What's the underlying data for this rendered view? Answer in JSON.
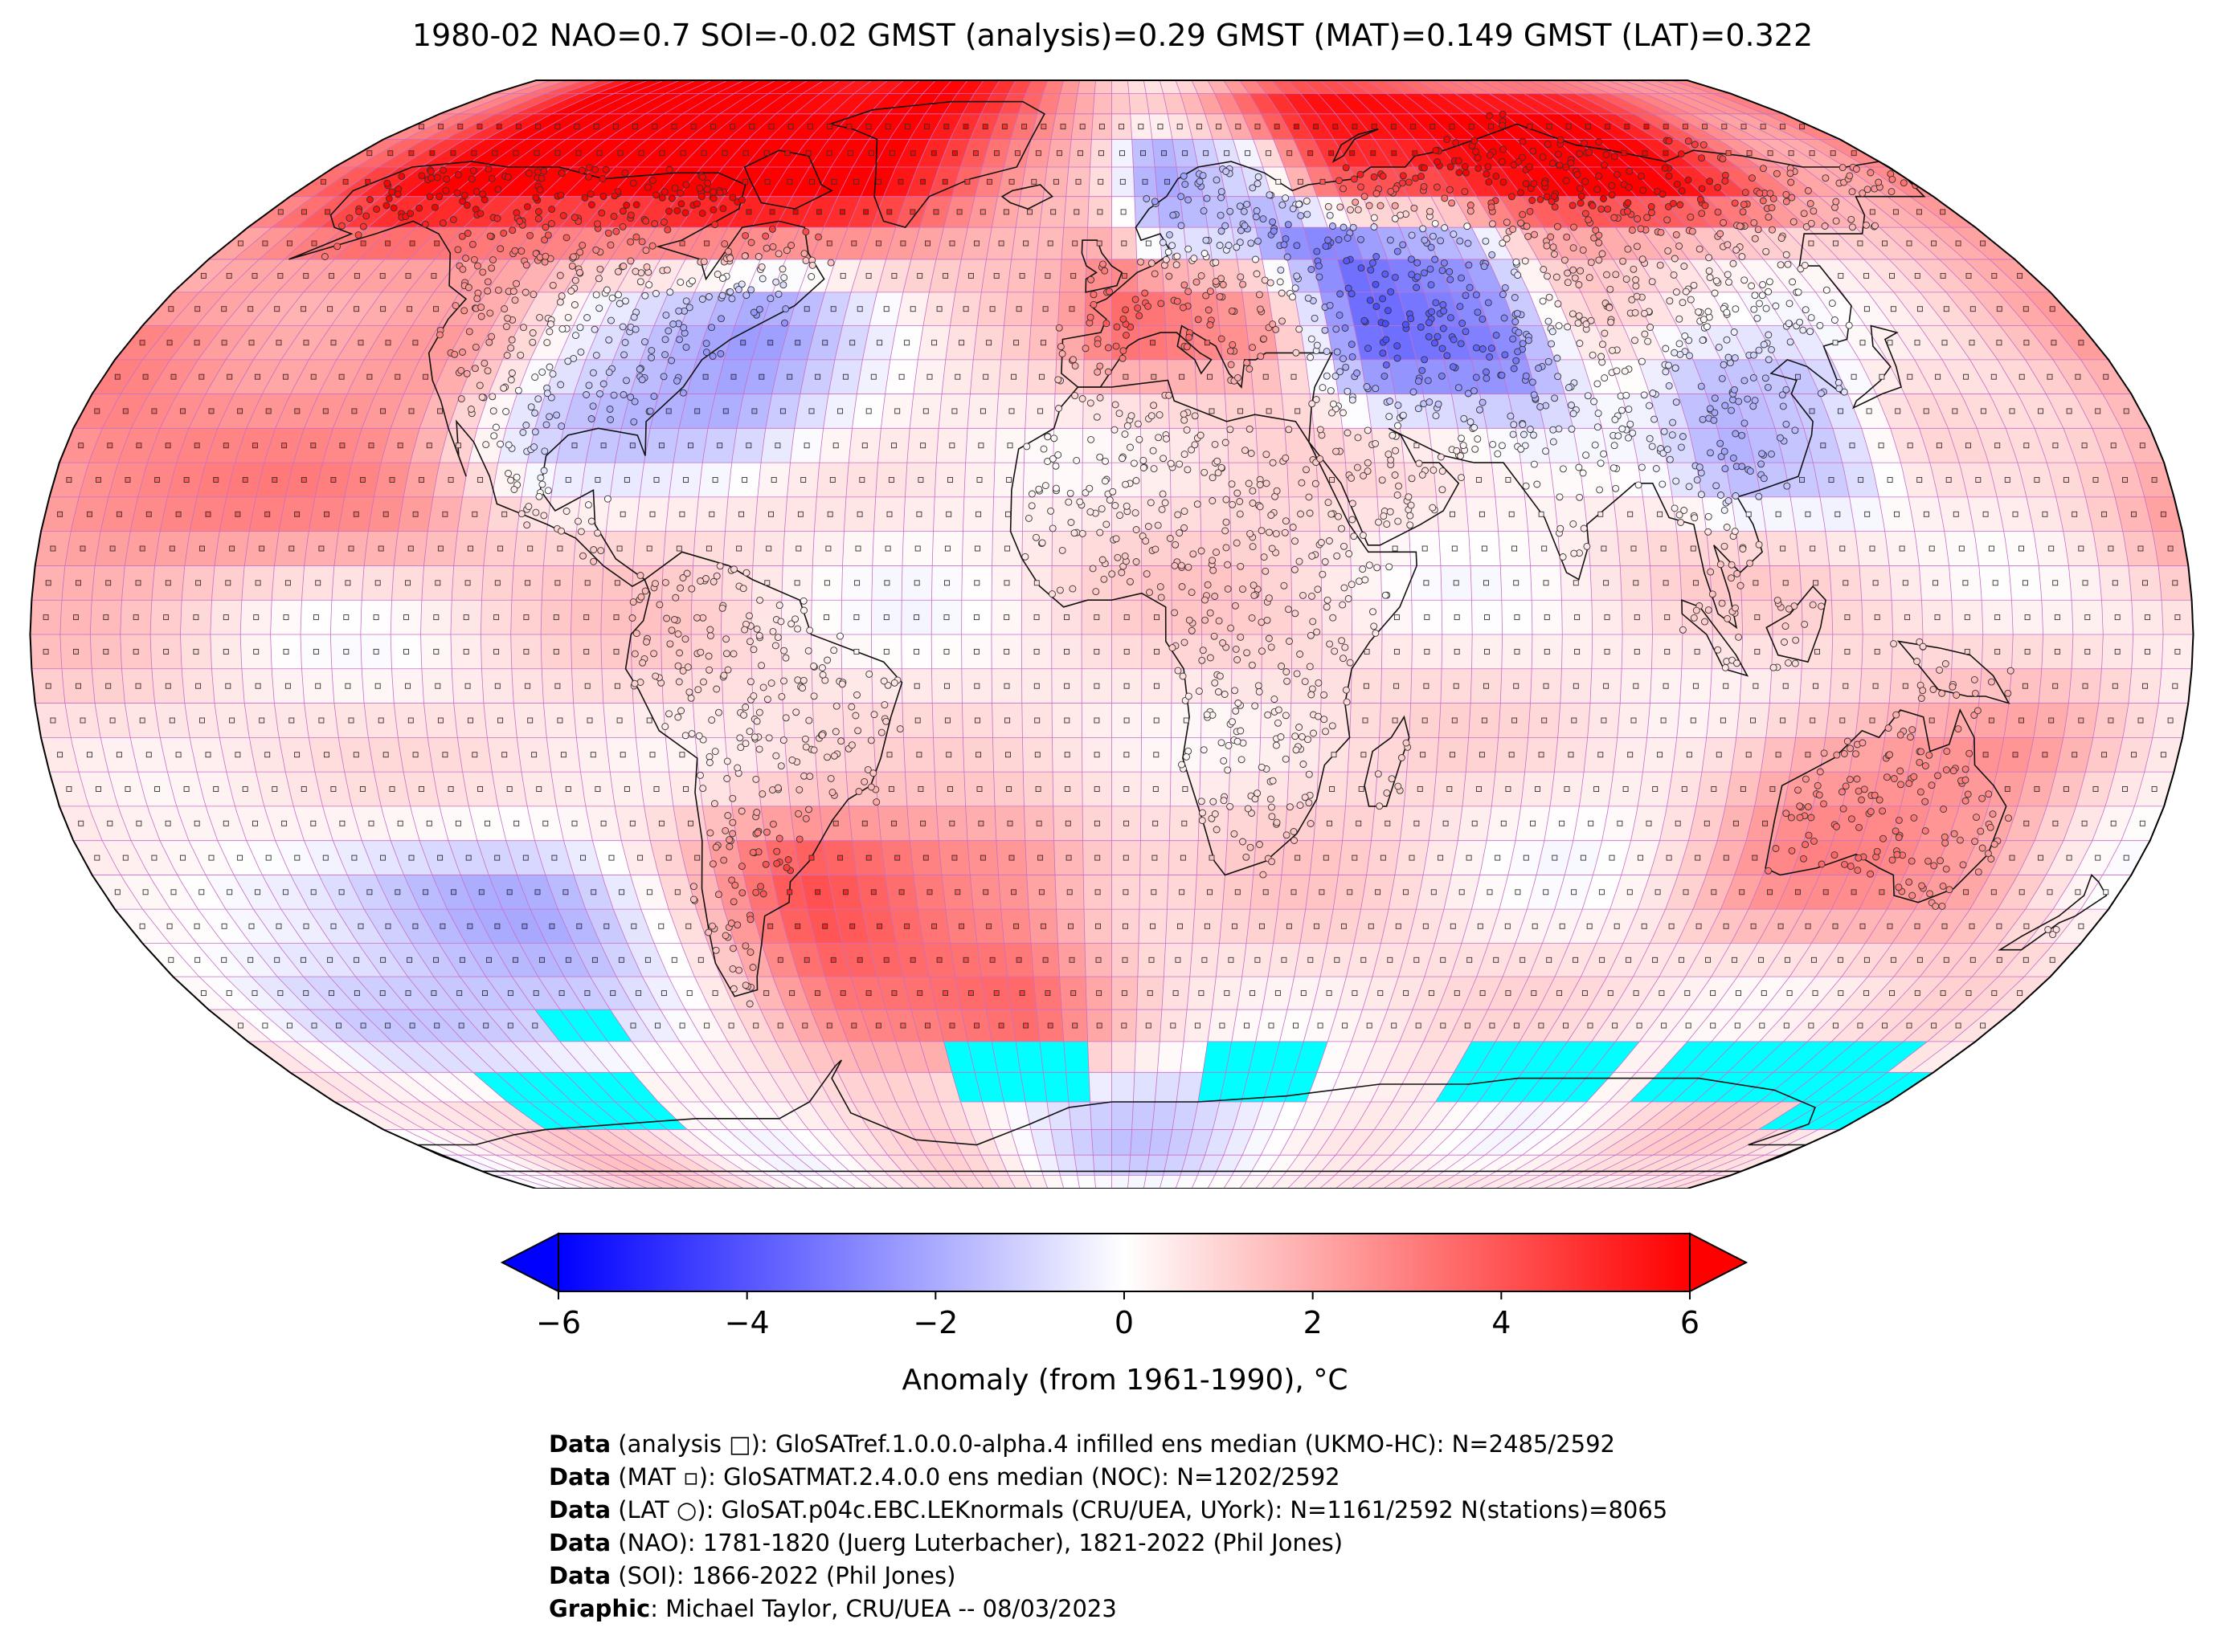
{
  "title": "1980-02 NAO=0.7 SOI=-0.02 GMST (analysis)=0.29 GMST (MAT)=0.149 GMST (LAT)=0.322",
  "colorbar": {
    "label": "Anomaly (from 1961-1990), °C",
    "ticks": [
      "−6",
      "−4",
      "−2",
      "0",
      "2",
      "4",
      "6"
    ],
    "range": [
      -6,
      6
    ],
    "colors": {
      "min": "#0000ff",
      "mid": "#ffffff",
      "max": "#ff0000"
    }
  },
  "map": {
    "projection": "robinson",
    "grid_spacing_deg": 5,
    "no_data_color": "#00ffff",
    "grid_color": "#c86ec8",
    "anomaly_regions": [
      {
        "region": "arctic-canada-greenland",
        "anomaly": 5.8
      },
      {
        "region": "arctic-siberia",
        "anomaly": 5.2
      },
      {
        "region": "eastern-north-america",
        "anomaly": -2.6
      },
      {
        "region": "scandinavia",
        "anomaly": -4.5
      },
      {
        "region": "central-asia",
        "anomaly": -3.6
      },
      {
        "region": "east-china",
        "anomaly": -2.4
      },
      {
        "region": "central-europe",
        "anomaly": 2.4
      },
      {
        "region": "north-pacific-east",
        "anomaly": 2.2
      },
      {
        "region": "south-pacific-west",
        "anomaly": -1.8
      },
      {
        "region": "australia",
        "anomaly": 1.6
      },
      {
        "region": "south-atlantic",
        "anomaly": 2.8
      },
      {
        "region": "antarctica-east",
        "anomaly": -1.2
      }
    ]
  },
  "footer": [
    {
      "bold": "Data",
      "text": " (analysis □): GloSATref.1.0.0.0-alpha.4 infilled ens median (UKMO-HC): N=2485/2592"
    },
    {
      "bold": "Data",
      "text": " (MAT ▫): GloSATMAT.2.4.0.0 ens median (NOC): N=1202/2592"
    },
    {
      "bold": "Data",
      "text": " (LAT ○): GloSAT.p04c.EBC.LEKnormals (CRU/UEA, UYork): N=1161/2592 N(stations)=8065"
    },
    {
      "bold": "Data",
      "text": " (NAO): 1781-1820 (Juerg Luterbacher), 1821-2022 (Phil Jones)"
    },
    {
      "bold": "Data",
      "text": " (SOI): 1866-2022 (Phil Jones)"
    },
    {
      "bold": "Graphic",
      "text": ": Michael Taylor, CRU/UEA -- 08/03/2023"
    }
  ]
}
